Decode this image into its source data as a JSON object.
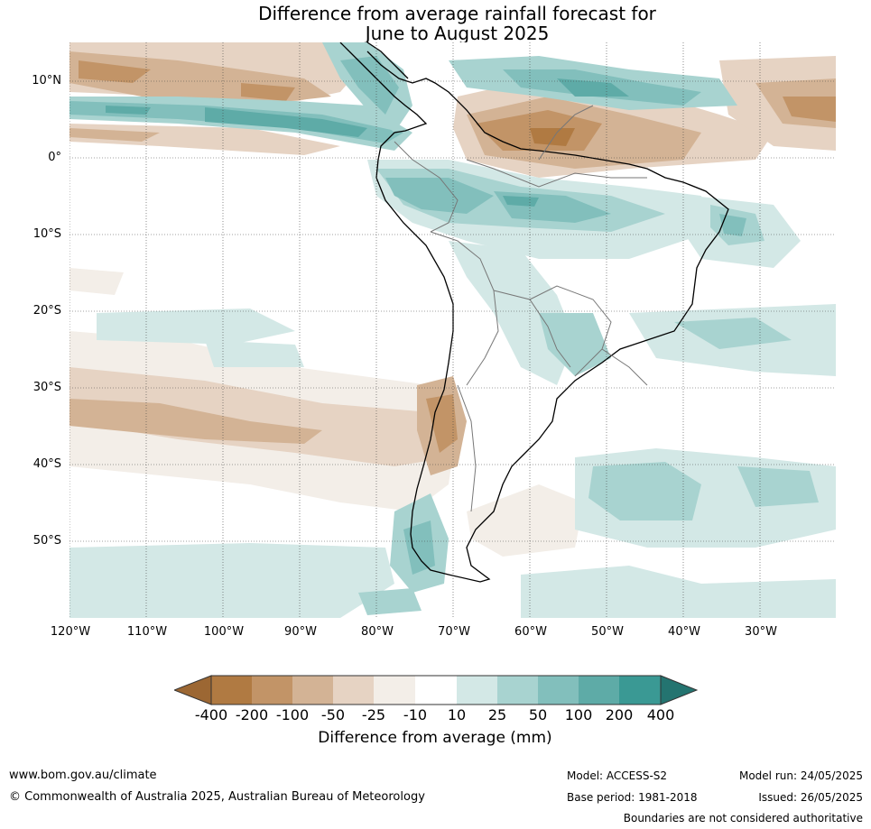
{
  "title": {
    "line1": "Difference from average rainfall forecast for",
    "line2": "June to August 2025"
  },
  "map": {
    "lat_labels": [
      "10°N",
      "0°",
      "10°S",
      "20°S",
      "30°S",
      "40°S",
      "50°S"
    ],
    "lon_labels": [
      "120°W",
      "110°W",
      "100°W",
      "90°W",
      "80°W",
      "70°W",
      "60°W",
      "50°W",
      "40°W",
      "30°W"
    ]
  },
  "colorbar": {
    "ticks": [
      "-400",
      "-200",
      "-100",
      "-50",
      "-25",
      "-10",
      "10",
      "25",
      "50",
      "100",
      "200",
      "400"
    ],
    "colors": [
      "#9c6733",
      "#b07a42",
      "#c29467",
      "#d3b395",
      "#e6d3c3",
      "#f3eee8",
      "#ffffff",
      "#d3e8e6",
      "#a8d3d0",
      "#82bfbc",
      "#5eaba7",
      "#3a9994",
      "#247470"
    ],
    "label": "Difference from average (mm)"
  },
  "footer": {
    "website": "www.bom.gov.au/climate",
    "copyright": "© Commonwealth of Australia 2025, Australian Bureau of Meteorology",
    "model": "Model: ACCESS-S2",
    "base_period": "Base period: 1981-2018",
    "model_run": "Model run: 24/05/2025",
    "issued": "Issued: 26/05/2025",
    "disclaimer": "Boundaries are not considered authoritative"
  }
}
